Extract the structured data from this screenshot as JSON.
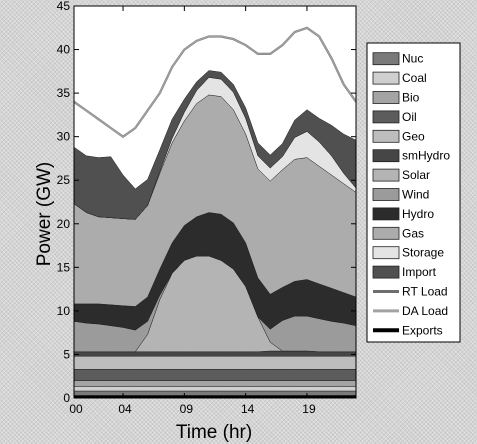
{
  "chart_data": {
    "type": "area",
    "title": "",
    "xlabel": "Time (hr)",
    "ylabel": "Power (GW)",
    "x": [
      0,
      1,
      2,
      3,
      4,
      5,
      6,
      7,
      8,
      9,
      10,
      11,
      12,
      13,
      14,
      15,
      16,
      17,
      18,
      19,
      20,
      21,
      22,
      23
    ],
    "xticks": [
      {
        "value": 0,
        "label": "00"
      },
      {
        "value": 4,
        "label": "04"
      },
      {
        "value": 9,
        "label": "09"
      },
      {
        "value": 14,
        "label": "14"
      },
      {
        "value": 19,
        "label": "19"
      }
    ],
    "xlim": [
      0,
      23
    ],
    "ylim": [
      0,
      45
    ],
    "yticks": [
      0,
      5,
      10,
      15,
      20,
      25,
      30,
      35,
      40,
      45
    ],
    "grid": false,
    "legend_position": "right",
    "stack_order": [
      "Exports",
      "Nuc",
      "Coal",
      "Bio",
      "Oil",
      "Geo",
      "smHydro",
      "Solar",
      "Wind",
      "Hydro",
      "Gas",
      "Storage",
      "Import"
    ],
    "series": [
      {
        "name": "Nuc",
        "color": "#7a7a7a",
        "values": [
          0.5,
          0.5,
          0.5,
          0.5,
          0.5,
          0.5,
          0.5,
          0.5,
          0.5,
          0.5,
          0.5,
          0.5,
          0.5,
          0.5,
          0.5,
          0.5,
          0.5,
          0.5,
          0.5,
          0.5,
          0.5,
          0.5,
          0.5,
          0.5
        ]
      },
      {
        "name": "Coal",
        "color": "#cfcfcf",
        "values": [
          0.5,
          0.5,
          0.5,
          0.5,
          0.5,
          0.5,
          0.5,
          0.5,
          0.5,
          0.5,
          0.5,
          0.5,
          0.5,
          0.5,
          0.5,
          0.5,
          0.5,
          0.5,
          0.5,
          0.5,
          0.5,
          0.5,
          0.5,
          0.5
        ]
      },
      {
        "name": "Bio",
        "color": "#a4a4a4",
        "values": [
          0.7,
          0.7,
          0.7,
          0.7,
          0.7,
          0.7,
          0.7,
          0.7,
          0.7,
          0.7,
          0.7,
          0.7,
          0.7,
          0.7,
          0.7,
          0.7,
          0.7,
          0.7,
          0.7,
          0.7,
          0.7,
          0.7,
          0.7,
          0.7
        ]
      },
      {
        "name": "Oil",
        "color": "#5c5c5c",
        "values": [
          1.3,
          1.3,
          1.3,
          1.3,
          1.3,
          1.3,
          1.3,
          1.3,
          1.3,
          1.3,
          1.3,
          1.3,
          1.3,
          1.3,
          1.3,
          1.3,
          1.3,
          1.3,
          1.3,
          1.3,
          1.3,
          1.3,
          1.3,
          1.3
        ]
      },
      {
        "name": "Geo",
        "color": "#bdbdbd",
        "values": [
          1.5,
          1.5,
          1.5,
          1.5,
          1.5,
          1.5,
          1.5,
          1.5,
          1.5,
          1.5,
          1.5,
          1.5,
          1.5,
          1.5,
          1.5,
          1.5,
          1.5,
          1.5,
          1.5,
          1.5,
          1.5,
          1.5,
          1.5,
          1.5
        ]
      },
      {
        "name": "smHydro",
        "color": "#464646",
        "values": [
          0.5,
          0.5,
          0.5,
          0.5,
          0.5,
          0.5,
          0.5,
          0.5,
          0.5,
          0.5,
          0.5,
          0.5,
          0.5,
          0.5,
          0.5,
          0.5,
          0.6,
          0.6,
          0.6,
          0.6,
          0.5,
          0.5,
          0.5,
          0.5
        ]
      },
      {
        "name": "Solar",
        "color": "#b4b4b4",
        "values": [
          0,
          0,
          0,
          0,
          0,
          0,
          2,
          6,
          9,
          10.5,
          11,
          11,
          10.5,
          9.5,
          7.5,
          4,
          1,
          0,
          0,
          0,
          0,
          0,
          0,
          0
        ]
      },
      {
        "name": "Wind",
        "color": "#9b9b9b",
        "values": [
          3.5,
          3.3,
          3.2,
          3.0,
          2.8,
          2.5,
          1.5,
          0.5,
          0,
          0,
          0,
          0,
          0,
          0,
          0,
          0,
          1.5,
          3.5,
          4,
          4,
          3.8,
          3.5,
          3.3,
          3
        ]
      },
      {
        "name": "Hydro",
        "color": "#2c2c2c",
        "values": [
          2,
          2.2,
          2.3,
          2.4,
          2.5,
          2.7,
          2.8,
          3,
          3.5,
          4,
          4.5,
          5,
          5.3,
          5.3,
          5,
          4.5,
          4,
          3.8,
          4,
          4.2,
          4,
          3.8,
          3.5,
          3.3
        ]
      },
      {
        "name": "Gas",
        "color": "#acacac",
        "values": [
          11.5,
          10.5,
          10,
          10,
          10,
          10,
          10.5,
          11,
          11.5,
          12,
          13,
          13.5,
          13.5,
          13,
          12.5,
          12.5,
          13,
          13.5,
          14,
          14,
          13.5,
          13,
          12.5,
          12
        ]
      },
      {
        "name": "Storage",
        "color": "#e4e4e4",
        "values": [
          0,
          0,
          0,
          0,
          0,
          0,
          0,
          0.2,
          0.5,
          1,
          1.5,
          2,
          2,
          2,
          1.8,
          1.5,
          1.5,
          1.5,
          2.5,
          3,
          2.8,
          2.2,
          1.2,
          0.5
        ]
      },
      {
        "name": "Import",
        "color": "#505050",
        "values": [
          6.5,
          6.5,
          6.8,
          7,
          5,
          3.5,
          3,
          2.5,
          2.2,
          1.5,
          1,
          0.8,
          0.8,
          0.9,
          1.2,
          1.5,
          1.5,
          1.5,
          2,
          2.5,
          2.7,
          3.5,
          4.5,
          5.5
        ]
      },
      {
        "name": "Exports",
        "color": "#000000",
        "values": [
          0.3,
          0.3,
          0.3,
          0.3,
          0.3,
          0.3,
          0.3,
          0.3,
          0.3,
          0.3,
          0.3,
          0.3,
          0.3,
          0.3,
          0.3,
          0.3,
          0.3,
          0.3,
          0.3,
          0.3,
          0.3,
          0.3,
          0.3,
          0.3
        ]
      }
    ],
    "lines": [
      {
        "name": "RT Load",
        "color": "#6e6e6e",
        "values": [
          34,
          33,
          32,
          31,
          30,
          31,
          33,
          35,
          38,
          40,
          41,
          41.5,
          41.5,
          41.2,
          40.5,
          39.5,
          39.5,
          40.5,
          42,
          42.5,
          41.5,
          39,
          36,
          34
        ]
      },
      {
        "name": "DA Load",
        "color": "#a2a2a2",
        "values": [
          34,
          33,
          32,
          31,
          30,
          31,
          33,
          35,
          38,
          40,
          41,
          41.5,
          41.5,
          41.2,
          40.5,
          39.5,
          39.5,
          40.5,
          42,
          42.5,
          41.5,
          39,
          36,
          34
        ]
      }
    ],
    "legend": [
      "Nuc",
      "Coal",
      "Bio",
      "Oil",
      "Geo",
      "smHydro",
      "Solar",
      "Wind",
      "Hydro",
      "Gas",
      "Storage",
      "Import",
      "RT Load",
      "DA Load",
      "Exports"
    ]
  }
}
